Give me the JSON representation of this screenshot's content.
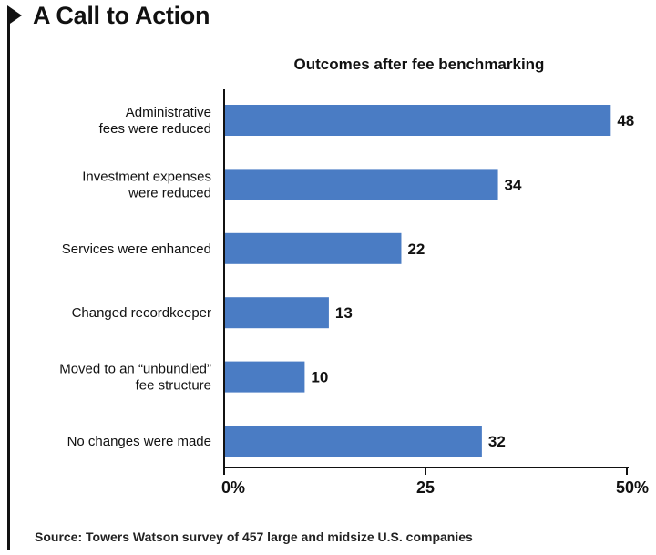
{
  "header": {
    "title": "A Call to Action"
  },
  "footer": {
    "source": "Source: Towers Watson survey of 457 large and midsize U.S. companies"
  },
  "colors": {
    "bar": "#4a7cc4",
    "axis": "#111111"
  },
  "chart_data": {
    "type": "bar",
    "orientation": "horizontal",
    "title": "Outcomes after fee benchmarking",
    "categories": [
      [
        "Administrative",
        "fees were reduced"
      ],
      [
        "Investment expenses",
        "were reduced"
      ],
      [
        "Services were enhanced"
      ],
      [
        "Changed recordkeeper"
      ],
      [
        "Moved to an “unbundled”",
        "fee structure"
      ],
      [
        "No changes were made"
      ]
    ],
    "values": [
      48,
      34,
      22,
      13,
      10,
      32
    ],
    "xlim": [
      0,
      50
    ],
    "xticks": [
      {
        "value": 0,
        "label": "0%"
      },
      {
        "value": 25,
        "label": "25"
      },
      {
        "value": 50,
        "label": "50%"
      }
    ],
    "grid": false,
    "xlabel": "",
    "ylabel": ""
  }
}
